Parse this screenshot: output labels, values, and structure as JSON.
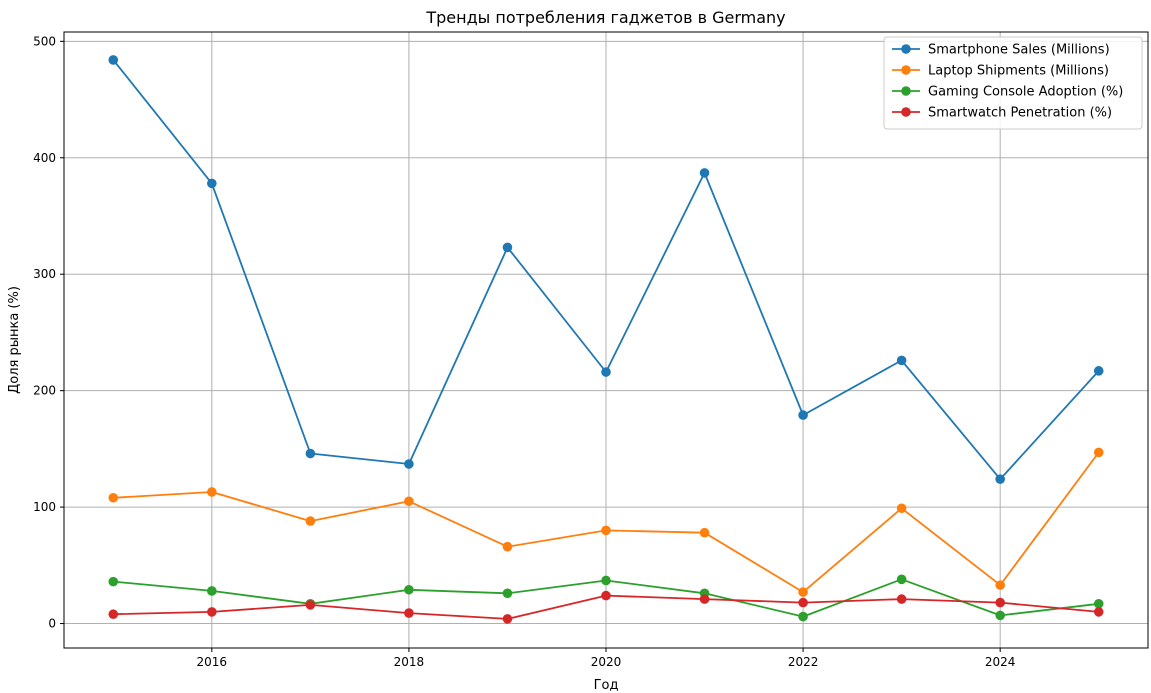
{
  "chart_data": {
    "type": "line",
    "title": "Тренды потребления гаджетов в Germany",
    "xlabel": "Год",
    "ylabel": "Доля рынка (%)",
    "xlim": [
      2014.5,
      2025.5
    ],
    "ylim": [
      -21,
      508
    ],
    "x_ticks": [
      2016,
      2018,
      2020,
      2022,
      2024
    ],
    "y_ticks": [
      0,
      100,
      200,
      300,
      400,
      500
    ],
    "grid": true,
    "legend_position": "top-right",
    "x": [
      2015,
      2016,
      2017,
      2018,
      2019,
      2020,
      2021,
      2022,
      2023,
      2024,
      2025
    ],
    "series": [
      {
        "name": "Smartphone Sales (Millions)",
        "color": "#1f77b4",
        "values": [
          484,
          378,
          146,
          137,
          323,
          216,
          387,
          179,
          226,
          124,
          217
        ]
      },
      {
        "name": "Laptop Shipments (Millions)",
        "color": "#ff7f0e",
        "values": [
          108,
          113,
          88,
          105,
          66,
          80,
          78,
          27,
          99,
          33,
          147
        ]
      },
      {
        "name": "Gaming Console Adoption (%)",
        "color": "#2ca02c",
        "values": [
          36,
          28,
          17,
          29,
          26,
          37,
          26,
          6,
          38,
          7,
          17
        ]
      },
      {
        "name": "Smartwatch Penetration (%)",
        "color": "#d62728",
        "values": [
          8,
          10,
          16,
          9,
          4,
          24,
          21,
          18,
          21,
          18,
          10
        ]
      }
    ]
  }
}
